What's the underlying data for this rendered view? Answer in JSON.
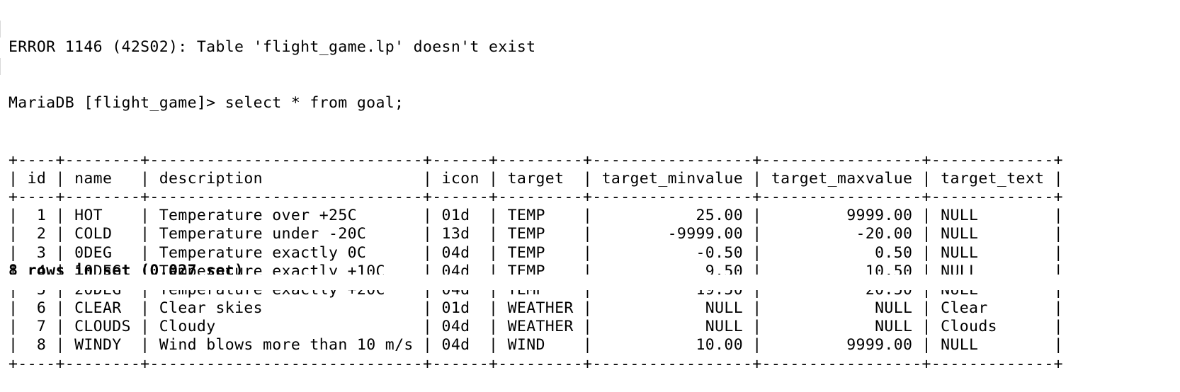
{
  "error_line": "ERROR 1146 (42S02): Table 'flight_game.lp' doesn't exist",
  "prompt_line": "MariaDB [flight_game]> select * from goal;",
  "table": {
    "columns": [
      "id",
      "name",
      "description",
      "icon",
      "target",
      "target_minvalue",
      "target_maxvalue",
      "target_text"
    ],
    "rows": [
      [
        "1",
        "HOT",
        "Temperature over +25C",
        "01d",
        "TEMP",
        "25.00",
        "9999.00",
        "NULL"
      ],
      [
        "2",
        "COLD",
        "Temperature under -20C",
        "13d",
        "TEMP",
        "-9999.00",
        "-20.00",
        "NULL"
      ],
      [
        "3",
        "0DEG",
        "Temperature exactly 0C",
        "04d",
        "TEMP",
        "-0.50",
        "0.50",
        "NULL"
      ],
      [
        "4",
        "10DEG",
        "Temperature exactly +10C",
        "04d",
        "TEMP",
        "9.50",
        "10.50",
        "NULL"
      ],
      [
        "5",
        "20DEG",
        "Temperature exactly +20C",
        "04d",
        "TEMP",
        "19.50",
        "20.50",
        "NULL"
      ],
      [
        "6",
        "CLEAR",
        "Clear skies",
        "01d",
        "WEATHER",
        "NULL",
        "NULL",
        "Clear"
      ],
      [
        "7",
        "CLOUDS",
        "Cloudy",
        "04d",
        "WEATHER",
        "NULL",
        "NULL",
        "Clouds"
      ],
      [
        "8",
        "WINDY",
        "Wind blows more than 10 m/s",
        "04d",
        "WIND",
        "10.00",
        "9999.00",
        "NULL"
      ]
    ]
  },
  "footer_line": "8 rows in set (0.027 sec)"
}
